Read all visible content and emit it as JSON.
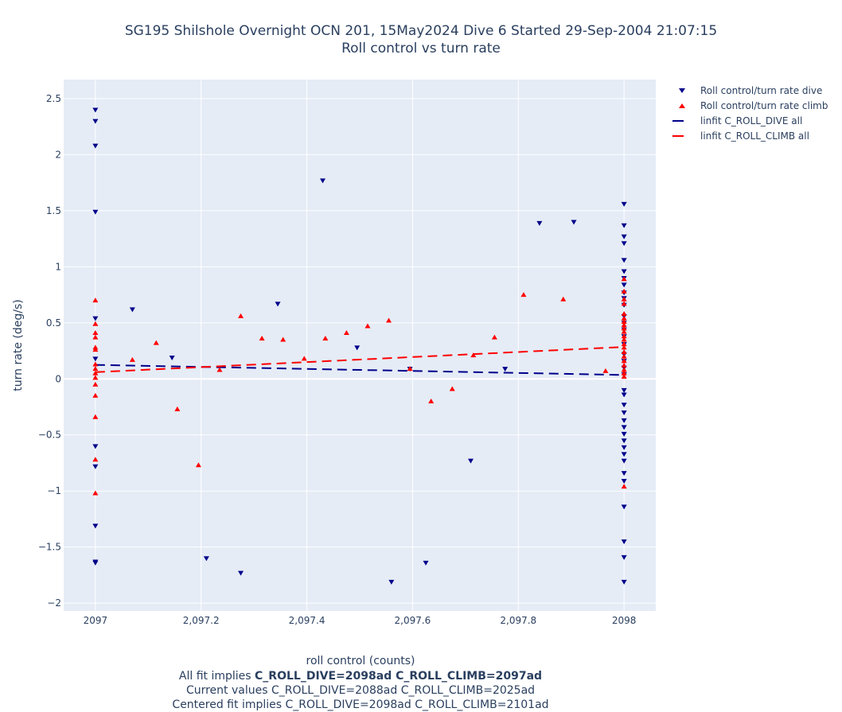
{
  "chart_data": {
    "type": "scatter",
    "title": "SG195 Shilshole Overnight OCN 201, 15May2024 Dive 6 Started 29-Sep-2004 21:07:15",
    "subtitle": "Roll control vs turn rate",
    "xlabel": "roll control (counts)",
    "ylabel": "turn rate (deg/s)",
    "xlim": [
      2096.94,
      2098.06
    ],
    "ylim": [
      -2.07,
      2.67
    ],
    "x_ticks": [
      2097,
      2097.2,
      2097.4,
      2097.6,
      2097.8,
      2098
    ],
    "x_tick_labels": [
      "2097",
      "2,097.2",
      "2,097.4",
      "2,097.6",
      "2,097.8",
      "2098"
    ],
    "y_ticks": [
      -2,
      -1.5,
      -1,
      -0.5,
      0,
      0.5,
      1,
      1.5,
      2,
      2.5
    ],
    "y_tick_labels": [
      "−2",
      "−1.5",
      "−1",
      "−0.5",
      "0",
      "0.5",
      "1",
      "1.5",
      "2",
      "2.5"
    ],
    "grid": true,
    "legend_position": "right",
    "series": [
      {
        "name": "Roll control/turn rate dive",
        "marker": "triangle-down",
        "color": "#00008b",
        "points": [
          [
            2097,
            2.4
          ],
          [
            2097,
            2.3
          ],
          [
            2097,
            2.08
          ],
          [
            2097,
            1.49
          ],
          [
            2097,
            0.54
          ],
          [
            2097,
            0.18
          ],
          [
            2097,
            -0.6
          ],
          [
            2097,
            -0.78
          ],
          [
            2097,
            -1.31
          ],
          [
            2097,
            -1.63
          ],
          [
            2097,
            -1.64
          ],
          [
            2097.07,
            0.62
          ],
          [
            2097.145,
            0.19
          ],
          [
            2097.21,
            -1.6
          ],
          [
            2097.275,
            -1.73
          ],
          [
            2097.345,
            0.67
          ],
          [
            2097.43,
            1.77
          ],
          [
            2097.495,
            0.28
          ],
          [
            2097.56,
            -1.81
          ],
          [
            2097.595,
            0.09
          ],
          [
            2097.625,
            -1.64
          ],
          [
            2097.71,
            -0.73
          ],
          [
            2097.775,
            0.09
          ],
          [
            2097.84,
            1.39
          ],
          [
            2097.905,
            1.4
          ],
          [
            2098,
            1.56
          ],
          [
            2098,
            1.37
          ],
          [
            2098,
            1.27
          ],
          [
            2098,
            1.21
          ],
          [
            2098,
            1.06
          ],
          [
            2098,
            0.96
          ],
          [
            2098,
            0.9
          ],
          [
            2098,
            0.84
          ],
          [
            2098,
            0.77
          ],
          [
            2098,
            0.72
          ],
          [
            2098,
            0.66
          ],
          [
            2098,
            0.56
          ],
          [
            2098,
            0.5
          ],
          [
            2098,
            0.44
          ],
          [
            2098,
            0.38
          ],
          [
            2098,
            0.31
          ],
          [
            2098,
            0.22
          ],
          [
            2098,
            0.16
          ],
          [
            2098,
            0.1
          ],
          [
            2098,
            0.04
          ],
          [
            2098,
            -0.1
          ],
          [
            2098,
            -0.14
          ],
          [
            2098,
            -0.23
          ],
          [
            2098,
            -0.3
          ],
          [
            2098,
            -0.37
          ],
          [
            2098,
            -0.43
          ],
          [
            2098,
            -0.49
          ],
          [
            2098,
            -0.55
          ],
          [
            2098,
            -0.61
          ],
          [
            2098,
            -0.67
          ],
          [
            2098,
            -0.73
          ],
          [
            2098,
            -0.84
          ],
          [
            2098,
            -0.91
          ],
          [
            2098,
            -1.14
          ],
          [
            2098,
            -1.45
          ],
          [
            2098,
            -1.59
          ],
          [
            2098,
            -1.81
          ]
        ]
      },
      {
        "name": "Roll control/turn rate climb",
        "marker": "triangle-up",
        "color": "#ff0000",
        "points": [
          [
            2097,
            0.7
          ],
          [
            2097,
            0.49
          ],
          [
            2097,
            0.41
          ],
          [
            2097,
            0.37
          ],
          [
            2097,
            0.28
          ],
          [
            2097,
            0.26
          ],
          [
            2097,
            0.13
          ],
          [
            2097,
            0.09
          ],
          [
            2097,
            0.05
          ],
          [
            2097,
            0.01
          ],
          [
            2097,
            -0.05
          ],
          [
            2097,
            -0.15
          ],
          [
            2097,
            -0.34
          ],
          [
            2097,
            -0.72
          ],
          [
            2097,
            -1.02
          ],
          [
            2097.07,
            0.17
          ],
          [
            2097.115,
            0.32
          ],
          [
            2097.155,
            -0.27
          ],
          [
            2097.195,
            -0.77
          ],
          [
            2097.235,
            0.08
          ],
          [
            2097.275,
            0.56
          ],
          [
            2097.315,
            0.36
          ],
          [
            2097.355,
            0.35
          ],
          [
            2097.395,
            0.18
          ],
          [
            2097.435,
            0.36
          ],
          [
            2097.475,
            0.41
          ],
          [
            2097.515,
            0.47
          ],
          [
            2097.555,
            0.52
          ],
          [
            2097.595,
            0.09
          ],
          [
            2097.635,
            -0.2
          ],
          [
            2097.675,
            -0.09
          ],
          [
            2097.715,
            0.21
          ],
          [
            2097.755,
            0.37
          ],
          [
            2097.81,
            0.75
          ],
          [
            2097.885,
            0.71
          ],
          [
            2097.965,
            0.07
          ],
          [
            2098,
            0.89
          ],
          [
            2098,
            0.78
          ],
          [
            2098,
            0.71
          ],
          [
            2098,
            0.67
          ],
          [
            2098,
            0.58
          ],
          [
            2098,
            0.54
          ],
          [
            2098,
            0.51
          ],
          [
            2098,
            0.48
          ],
          [
            2098,
            0.45
          ],
          [
            2098,
            0.42
          ],
          [
            2098,
            0.38
          ],
          [
            2098,
            0.35
          ],
          [
            2098,
            0.31
          ],
          [
            2098,
            0.28
          ],
          [
            2098,
            0.24
          ],
          [
            2098,
            0.2
          ],
          [
            2098,
            0.16
          ],
          [
            2098,
            0.12
          ],
          [
            2098,
            0.08
          ],
          [
            2098,
            0.05
          ],
          [
            2098,
            0.02
          ],
          [
            2098,
            -0.96
          ]
        ]
      },
      {
        "name": "linfit C_ROLL_DIVE all",
        "type": "line",
        "dash": "dash",
        "color": "#00008b",
        "x": [
          2097,
          2098
        ],
        "y": [
          0.125,
          0.035
        ]
      },
      {
        "name": "linfit C_ROLL_CLIMB all",
        "type": "line",
        "dash": "dash",
        "color": "#ff0000",
        "x": [
          2097,
          2098
        ],
        "y": [
          0.06,
          0.285
        ]
      }
    ],
    "caption_lines": [
      {
        "prefix": "All fit implies ",
        "bold": "C_ROLL_DIVE=2098ad C_ROLL_CLIMB=2097ad"
      },
      {
        "prefix": "Current values C_ROLL_DIVE=2088ad C_ROLL_CLIMB=2025ad",
        "bold": ""
      },
      {
        "prefix": "Centered fit implies C_ROLL_DIVE=2098ad C_ROLL_CLIMB=2101ad",
        "bold": ""
      }
    ]
  },
  "colors": {
    "plot_bg": "#e5ecf6",
    "grid": "#ffffff",
    "text": "#2a3f5f"
  }
}
